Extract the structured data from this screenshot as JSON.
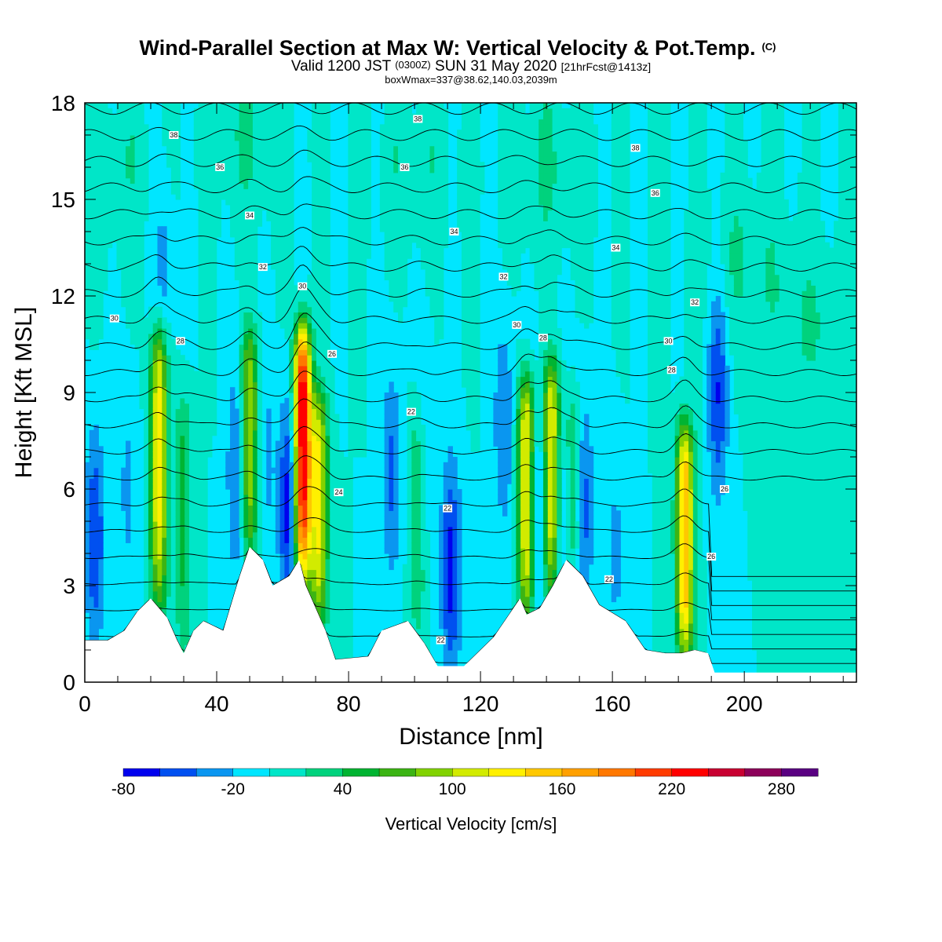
{
  "title": {
    "main": "Wind-Parallel Section at Max W: Vertical Velocity & Pot.Temp.",
    "main_suffix": "(C)",
    "sub_part1": "Valid 1200 JST",
    "sub_part2": "(0300Z)",
    "sub_part3": "SUN 31 May 2020",
    "sub_part4": "[21hrFcst@1413z]",
    "box": "boxWmax=337@38.62,140.03,2039m"
  },
  "chart_data": {
    "type": "heatmap",
    "xlabel": "Distance [nm]",
    "ylabel": "Height [Kft MSL]",
    "xlim": [
      0,
      234
    ],
    "ylim": [
      0,
      18
    ],
    "x_ticks": [
      0,
      40,
      80,
      120,
      160,
      200
    ],
    "y_ticks": [
      0,
      3,
      6,
      9,
      12,
      15,
      18
    ],
    "colorbar": {
      "title": "Vertical Velocity [cm/s]",
      "min": -80,
      "step": 20,
      "labels": [
        -80,
        -20,
        40,
        100,
        160,
        220,
        280
      ],
      "colors": [
        "#0000ee",
        "#0050f0",
        "#0a96f0",
        "#00e6ff",
        "#00e6c8",
        "#00d27d",
        "#00b432",
        "#3cb414",
        "#82d200",
        "#d2eb00",
        "#fff000",
        "#ffc800",
        "#ffa000",
        "#ff7800",
        "#ff3c00",
        "#ff0000",
        "#c80032",
        "#8c005a",
        "#5a0082"
      ]
    },
    "background_value": 0,
    "velocity_cores": [
      {
        "x": 22.5,
        "z": 8.0,
        "value": 130
      },
      {
        "x": 30,
        "z": 6.0,
        "value": 45
      },
      {
        "x": 50,
        "z": 8.0,
        "value": 100
      },
      {
        "x": 66,
        "z": 8.0,
        "value": 250
      },
      {
        "x": 71,
        "z": 6.0,
        "value": 120
      },
      {
        "x": 101,
        "z": 6.0,
        "value": 40
      },
      {
        "x": 134,
        "z": 6.5,
        "value": 140
      },
      {
        "x": 141.5,
        "z": 7.0,
        "value": 130
      },
      {
        "x": 148,
        "z": 6.0,
        "value": 60
      },
      {
        "x": 182,
        "z": 5.0,
        "value": 160
      }
    ],
    "downdraft_regions": [
      {
        "x": 3,
        "z": 4.5,
        "value": -60
      },
      {
        "x": 13,
        "z": 6.0,
        "value": -25
      },
      {
        "x": 24,
        "z": 13.0,
        "value": -30
      },
      {
        "x": 46,
        "z": 6.5,
        "value": -45
      },
      {
        "x": 55,
        "z": 7.0,
        "value": -25
      },
      {
        "x": 62,
        "z": 5.5,
        "value": -80
      },
      {
        "x": 93,
        "z": 6.5,
        "value": -45
      },
      {
        "x": 103,
        "z": 7.5,
        "value": -25
      },
      {
        "x": 111,
        "z": 3.5,
        "value": -70
      },
      {
        "x": 127,
        "z": 8.0,
        "value": -40
      },
      {
        "x": 137,
        "z": 5.5,
        "value": -60
      },
      {
        "x": 145,
        "z": 5.0,
        "value": -45
      },
      {
        "x": 151,
        "z": 5.5,
        "value": -55
      },
      {
        "x": 161,
        "z": 4.0,
        "value": -25
      },
      {
        "x": 192,
        "z": 9.0,
        "value": -60
      }
    ],
    "upper_updraft_zones": [
      {
        "x": 10,
        "z": 16.0,
        "value": 15
      },
      {
        "x": 50,
        "z": 17.0,
        "value": 20
      },
      {
        "x": 100,
        "z": 16.0,
        "value": 15
      },
      {
        "x": 140,
        "z": 16.0,
        "value": 20
      },
      {
        "x": 200,
        "z": 13.0,
        "value": 20
      },
      {
        "x": 220,
        "z": 11.0,
        "value": 20
      }
    ],
    "terrain": [
      [
        0,
        1.3
      ],
      [
        7,
        1.3
      ],
      [
        12,
        1.6
      ],
      [
        16,
        2.2
      ],
      [
        20,
        2.6
      ],
      [
        25,
        2.0
      ],
      [
        28,
        1.3
      ],
      [
        30,
        0.9
      ],
      [
        33,
        1.6
      ],
      [
        36,
        1.9
      ],
      [
        42,
        1.6
      ],
      [
        47,
        3.3
      ],
      [
        50,
        4.2
      ],
      [
        54,
        3.8
      ],
      [
        57,
        3.0
      ],
      [
        62,
        3.3
      ],
      [
        65,
        3.8
      ],
      [
        67,
        3.0
      ],
      [
        70,
        2.3
      ],
      [
        73,
        1.6
      ],
      [
        76,
        0.7
      ],
      [
        86,
        0.8
      ],
      [
        90,
        1.6
      ],
      [
        98,
        1.9
      ],
      [
        103,
        1.2
      ],
      [
        107,
        0.5
      ],
      [
        115,
        0.5
      ],
      [
        118,
        0.8
      ],
      [
        124,
        1.4
      ],
      [
        128,
        2.0
      ],
      [
        132,
        2.6
      ],
      [
        134,
        2.1
      ],
      [
        138,
        2.3
      ],
      [
        142,
        3.0
      ],
      [
        146,
        3.8
      ],
      [
        151,
        3.3
      ],
      [
        156,
        2.4
      ],
      [
        164,
        1.9
      ],
      [
        170,
        1.0
      ],
      [
        176,
        0.9
      ],
      [
        181,
        0.9
      ],
      [
        185,
        1.0
      ],
      [
        189,
        0.9
      ],
      [
        191,
        0.3
      ],
      [
        234,
        0.3
      ]
    ],
    "theta_contour_labels": [
      {
        "text": "38",
        "x": 27,
        "z": 17.0
      },
      {
        "text": "38",
        "x": 101,
        "z": 17.5
      },
      {
        "text": "38",
        "x": 167,
        "z": 16.6
      },
      {
        "text": "36",
        "x": 41,
        "z": 16.0
      },
      {
        "text": "36",
        "x": 97,
        "z": 16.0
      },
      {
        "text": "36",
        "x": 173,
        "z": 15.2
      },
      {
        "text": "34",
        "x": 50,
        "z": 14.5
      },
      {
        "text": "34",
        "x": 112,
        "z": 14.0
      },
      {
        "text": "34",
        "x": 161,
        "z": 13.5
      },
      {
        "text": "32",
        "x": 54,
        "z": 12.9
      },
      {
        "text": "32",
        "x": 127,
        "z": 12.6
      },
      {
        "text": "32",
        "x": 185,
        "z": 11.8
      },
      {
        "text": "30",
        "x": 9,
        "z": 11.3
      },
      {
        "text": "30",
        "x": 66,
        "z": 12.3
      },
      {
        "text": "30",
        "x": 131,
        "z": 11.1
      },
      {
        "text": "30",
        "x": 177,
        "z": 10.6
      },
      {
        "text": "28",
        "x": 29,
        "z": 10.6
      },
      {
        "text": "28",
        "x": 139,
        "z": 10.7
      },
      {
        "text": "28",
        "x": 178,
        "z": 9.7
      },
      {
        "text": "26",
        "x": 75,
        "z": 10.2
      },
      {
        "text": "26",
        "x": 194,
        "z": 6.0
      },
      {
        "text": "24",
        "x": 77,
        "z": 5.9
      },
      {
        "text": "22",
        "x": 99,
        "z": 8.4
      },
      {
        "text": "22",
        "x": 110,
        "z": 5.4
      },
      {
        "text": "22",
        "x": 108,
        "z": 1.3
      },
      {
        "text": "22",
        "x": 159,
        "z": 3.2
      },
      {
        "text": "26",
        "x": 190,
        "z": 3.9
      }
    ]
  }
}
